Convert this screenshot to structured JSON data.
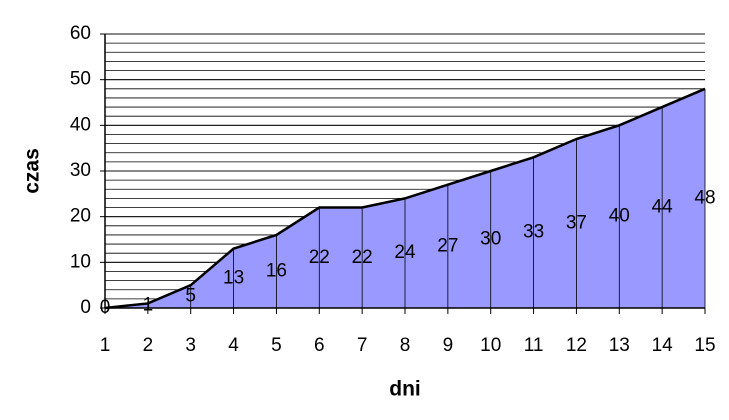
{
  "chart_data": {
    "type": "area",
    "x_label": "dni",
    "y_label": "czas",
    "categories": [
      "1",
      "2",
      "3",
      "4",
      "5",
      "6",
      "7",
      "8",
      "9",
      "10",
      "11",
      "12",
      "13",
      "14",
      "15"
    ],
    "values": [
      0,
      1,
      5,
      13,
      16,
      22,
      22,
      24,
      27,
      30,
      33,
      37,
      40,
      44,
      48
    ],
    "color": "#9999ff",
    "ylim": [
      0,
      60
    ],
    "yticks": [
      0,
      10,
      20,
      30,
      40,
      50,
      60
    ],
    "grid": true,
    "minor_grid_step": 2
  }
}
